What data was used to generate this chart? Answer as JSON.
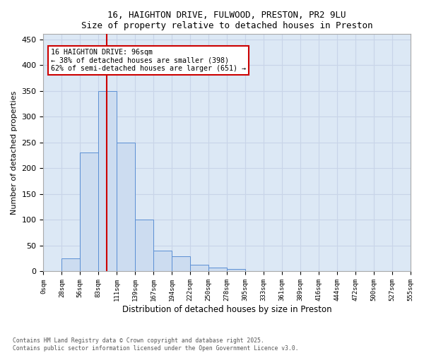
{
  "title_line1": "16, HAIGHTON DRIVE, FULWOOD, PRESTON, PR2 9LU",
  "title_line2": "Size of property relative to detached houses in Preston",
  "xlabel": "Distribution of detached houses by size in Preston",
  "ylabel": "Number of detached properties",
  "bar_heights": [
    0,
    25,
    230,
    350,
    250,
    100,
    40,
    30,
    13,
    8,
    5,
    0,
    0,
    0,
    0,
    0,
    0,
    0,
    0,
    0
  ],
  "bar_color": "#ccdcf0",
  "bar_edge_color": "#5b8fd4",
  "grid_color": "#c8d4e8",
  "background_color": "#dce8f5",
  "property_bin": 3,
  "vline_color": "#cc0000",
  "annotation_text": "16 HAIGHTON DRIVE: 96sqm\n← 38% of detached houses are smaller (398)\n62% of semi-detached houses are larger (651) →",
  "annotation_box_color": "#cc0000",
  "ylim": [
    0,
    460
  ],
  "yticks": [
    0,
    50,
    100,
    150,
    200,
    250,
    300,
    350,
    400,
    450
  ],
  "tick_labels": [
    "0sqm",
    "28sqm",
    "56sqm",
    "83sqm",
    "111sqm",
    "139sqm",
    "167sqm",
    "194sqm",
    "222sqm",
    "250sqm",
    "278sqm",
    "305sqm",
    "333sqm",
    "361sqm",
    "389sqm",
    "416sqm",
    "444sqm",
    "472sqm",
    "500sqm",
    "527sqm",
    "555sqm"
  ],
  "footer_line1": "Contains HM Land Registry data © Crown copyright and database right 2025.",
  "footer_line2": "Contains public sector information licensed under the Open Government Licence v3.0.",
  "fig_width": 6.0,
  "fig_height": 5.0,
  "dpi": 100
}
